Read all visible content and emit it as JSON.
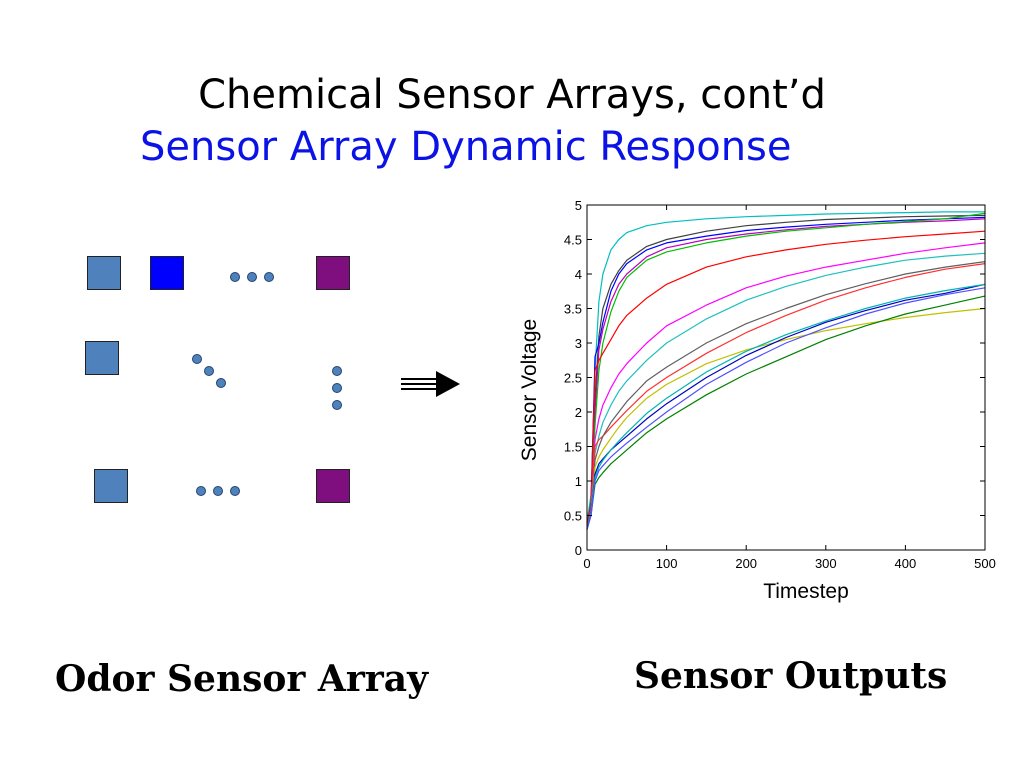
{
  "slide": {
    "title": "Chemical Sensor Arrays, cont’d",
    "subtitle": "Sensor Array Dynamic Response",
    "left_caption": "Odor Sensor Array",
    "right_caption": "Sensor Outputs"
  },
  "colors": {
    "square_blue": "#4f81bd",
    "square_bright_blue": "#0000ff",
    "square_purple": "#7f0f7f",
    "dot": "#4f81bd",
    "subtitle": "#0b12e6"
  },
  "chart_data": {
    "type": "line",
    "xlabel": "Timestep",
    "ylabel": "Sensor Voltage",
    "xlim": [
      0,
      500
    ],
    "ylim": [
      0,
      5
    ],
    "xticks": [
      0,
      100,
      200,
      300,
      400,
      500
    ],
    "yticks": [
      0,
      0.5,
      1,
      1.5,
      2,
      2.5,
      3,
      3.5,
      4,
      4.5,
      5
    ],
    "grid": false,
    "legend": "none",
    "x": [
      0,
      5,
      10,
      15,
      20,
      30,
      40,
      50,
      75,
      100,
      150,
      200,
      250,
      300,
      350,
      400,
      450,
      500
    ],
    "series": [
      {
        "color": "#00bfbf",
        "values": [
          0.4,
          0.8,
          2.6,
          3.6,
          4.0,
          4.35,
          4.5,
          4.6,
          4.7,
          4.75,
          4.8,
          4.83,
          4.85,
          4.87,
          4.88,
          4.89,
          4.9,
          4.9
        ]
      },
      {
        "color": "#404040",
        "values": [
          0.35,
          0.7,
          2.2,
          3.1,
          3.5,
          3.85,
          4.05,
          4.2,
          4.4,
          4.5,
          4.62,
          4.7,
          4.75,
          4.79,
          4.81,
          4.83,
          4.84,
          4.85
        ]
      },
      {
        "color": "#0000ff",
        "values": [
          0.3,
          0.6,
          2.8,
          3.0,
          3.3,
          3.75,
          4.0,
          4.15,
          4.35,
          4.45,
          4.55,
          4.63,
          4.68,
          4.72,
          4.75,
          4.78,
          4.8,
          4.82
        ]
      },
      {
        "color": "#bf00bf",
        "values": [
          0.3,
          0.6,
          2.0,
          2.9,
          3.2,
          3.6,
          3.85,
          4.0,
          4.25,
          4.38,
          4.5,
          4.58,
          4.64,
          4.69,
          4.72,
          4.75,
          4.77,
          4.8
        ]
      },
      {
        "color": "#00bf00",
        "values": [
          0.35,
          0.6,
          1.8,
          2.6,
          3.0,
          3.45,
          3.75,
          3.95,
          4.2,
          4.32,
          4.45,
          4.55,
          4.62,
          4.67,
          4.72,
          4.76,
          4.8,
          4.88
        ]
      },
      {
        "color": "#ff0000",
        "values": [
          0.35,
          0.65,
          2.6,
          2.75,
          2.85,
          3.05,
          3.25,
          3.4,
          3.65,
          3.85,
          4.1,
          4.25,
          4.35,
          4.43,
          4.49,
          4.54,
          4.58,
          4.62
        ]
      },
      {
        "color": "#ff00ff",
        "values": [
          0.3,
          0.6,
          1.6,
          1.9,
          2.1,
          2.35,
          2.55,
          2.7,
          3.0,
          3.25,
          3.55,
          3.8,
          3.97,
          4.1,
          4.2,
          4.3,
          4.38,
          4.45
        ]
      },
      {
        "color": "#1fc0c0",
        "values": [
          0.3,
          0.55,
          1.4,
          1.65,
          1.85,
          2.1,
          2.3,
          2.45,
          2.75,
          3.0,
          3.35,
          3.62,
          3.82,
          3.98,
          4.1,
          4.2,
          4.26,
          4.3
        ]
      },
      {
        "color": "#ff3030",
        "values": [
          0.3,
          0.55,
          1.5,
          1.6,
          1.65,
          1.78,
          1.9,
          2.02,
          2.3,
          2.5,
          2.85,
          3.15,
          3.4,
          3.62,
          3.8,
          3.95,
          4.07,
          4.15
        ]
      },
      {
        "color": "#606060",
        "values": [
          0.3,
          0.55,
          1.3,
          1.5,
          1.65,
          1.85,
          2.0,
          2.15,
          2.45,
          2.65,
          3.0,
          3.28,
          3.5,
          3.7,
          3.86,
          4.0,
          4.1,
          4.18
        ]
      },
      {
        "color": "#c0c000",
        "values": [
          0.3,
          0.55,
          1.2,
          1.35,
          1.45,
          1.62,
          1.78,
          1.92,
          2.2,
          2.4,
          2.7,
          2.9,
          3.05,
          3.18,
          3.28,
          3.37,
          3.44,
          3.5
        ]
      },
      {
        "color": "#0000c0",
        "values": [
          0.3,
          0.55,
          1.1,
          1.25,
          1.32,
          1.45,
          1.55,
          1.65,
          1.9,
          2.12,
          2.5,
          2.82,
          3.08,
          3.3,
          3.47,
          3.62,
          3.72,
          3.85
        ]
      },
      {
        "color": "#00b4b4",
        "values": [
          0.3,
          0.55,
          1.05,
          1.2,
          1.3,
          1.45,
          1.58,
          1.7,
          1.98,
          2.2,
          2.58,
          2.88,
          3.12,
          3.32,
          3.5,
          3.65,
          3.76,
          3.85
        ]
      },
      {
        "color": "#008000",
        "values": [
          0.3,
          0.5,
          0.95,
          1.05,
          1.12,
          1.25,
          1.35,
          1.45,
          1.7,
          1.9,
          2.25,
          2.55,
          2.8,
          3.05,
          3.25,
          3.42,
          3.55,
          3.68
        ]
      },
      {
        "color": "#5050ff",
        "values": [
          0.3,
          0.5,
          1.0,
          1.15,
          1.22,
          1.35,
          1.45,
          1.55,
          1.78,
          2.0,
          2.4,
          2.72,
          3.0,
          3.22,
          3.42,
          3.58,
          3.7,
          3.8
        ]
      }
    ]
  }
}
